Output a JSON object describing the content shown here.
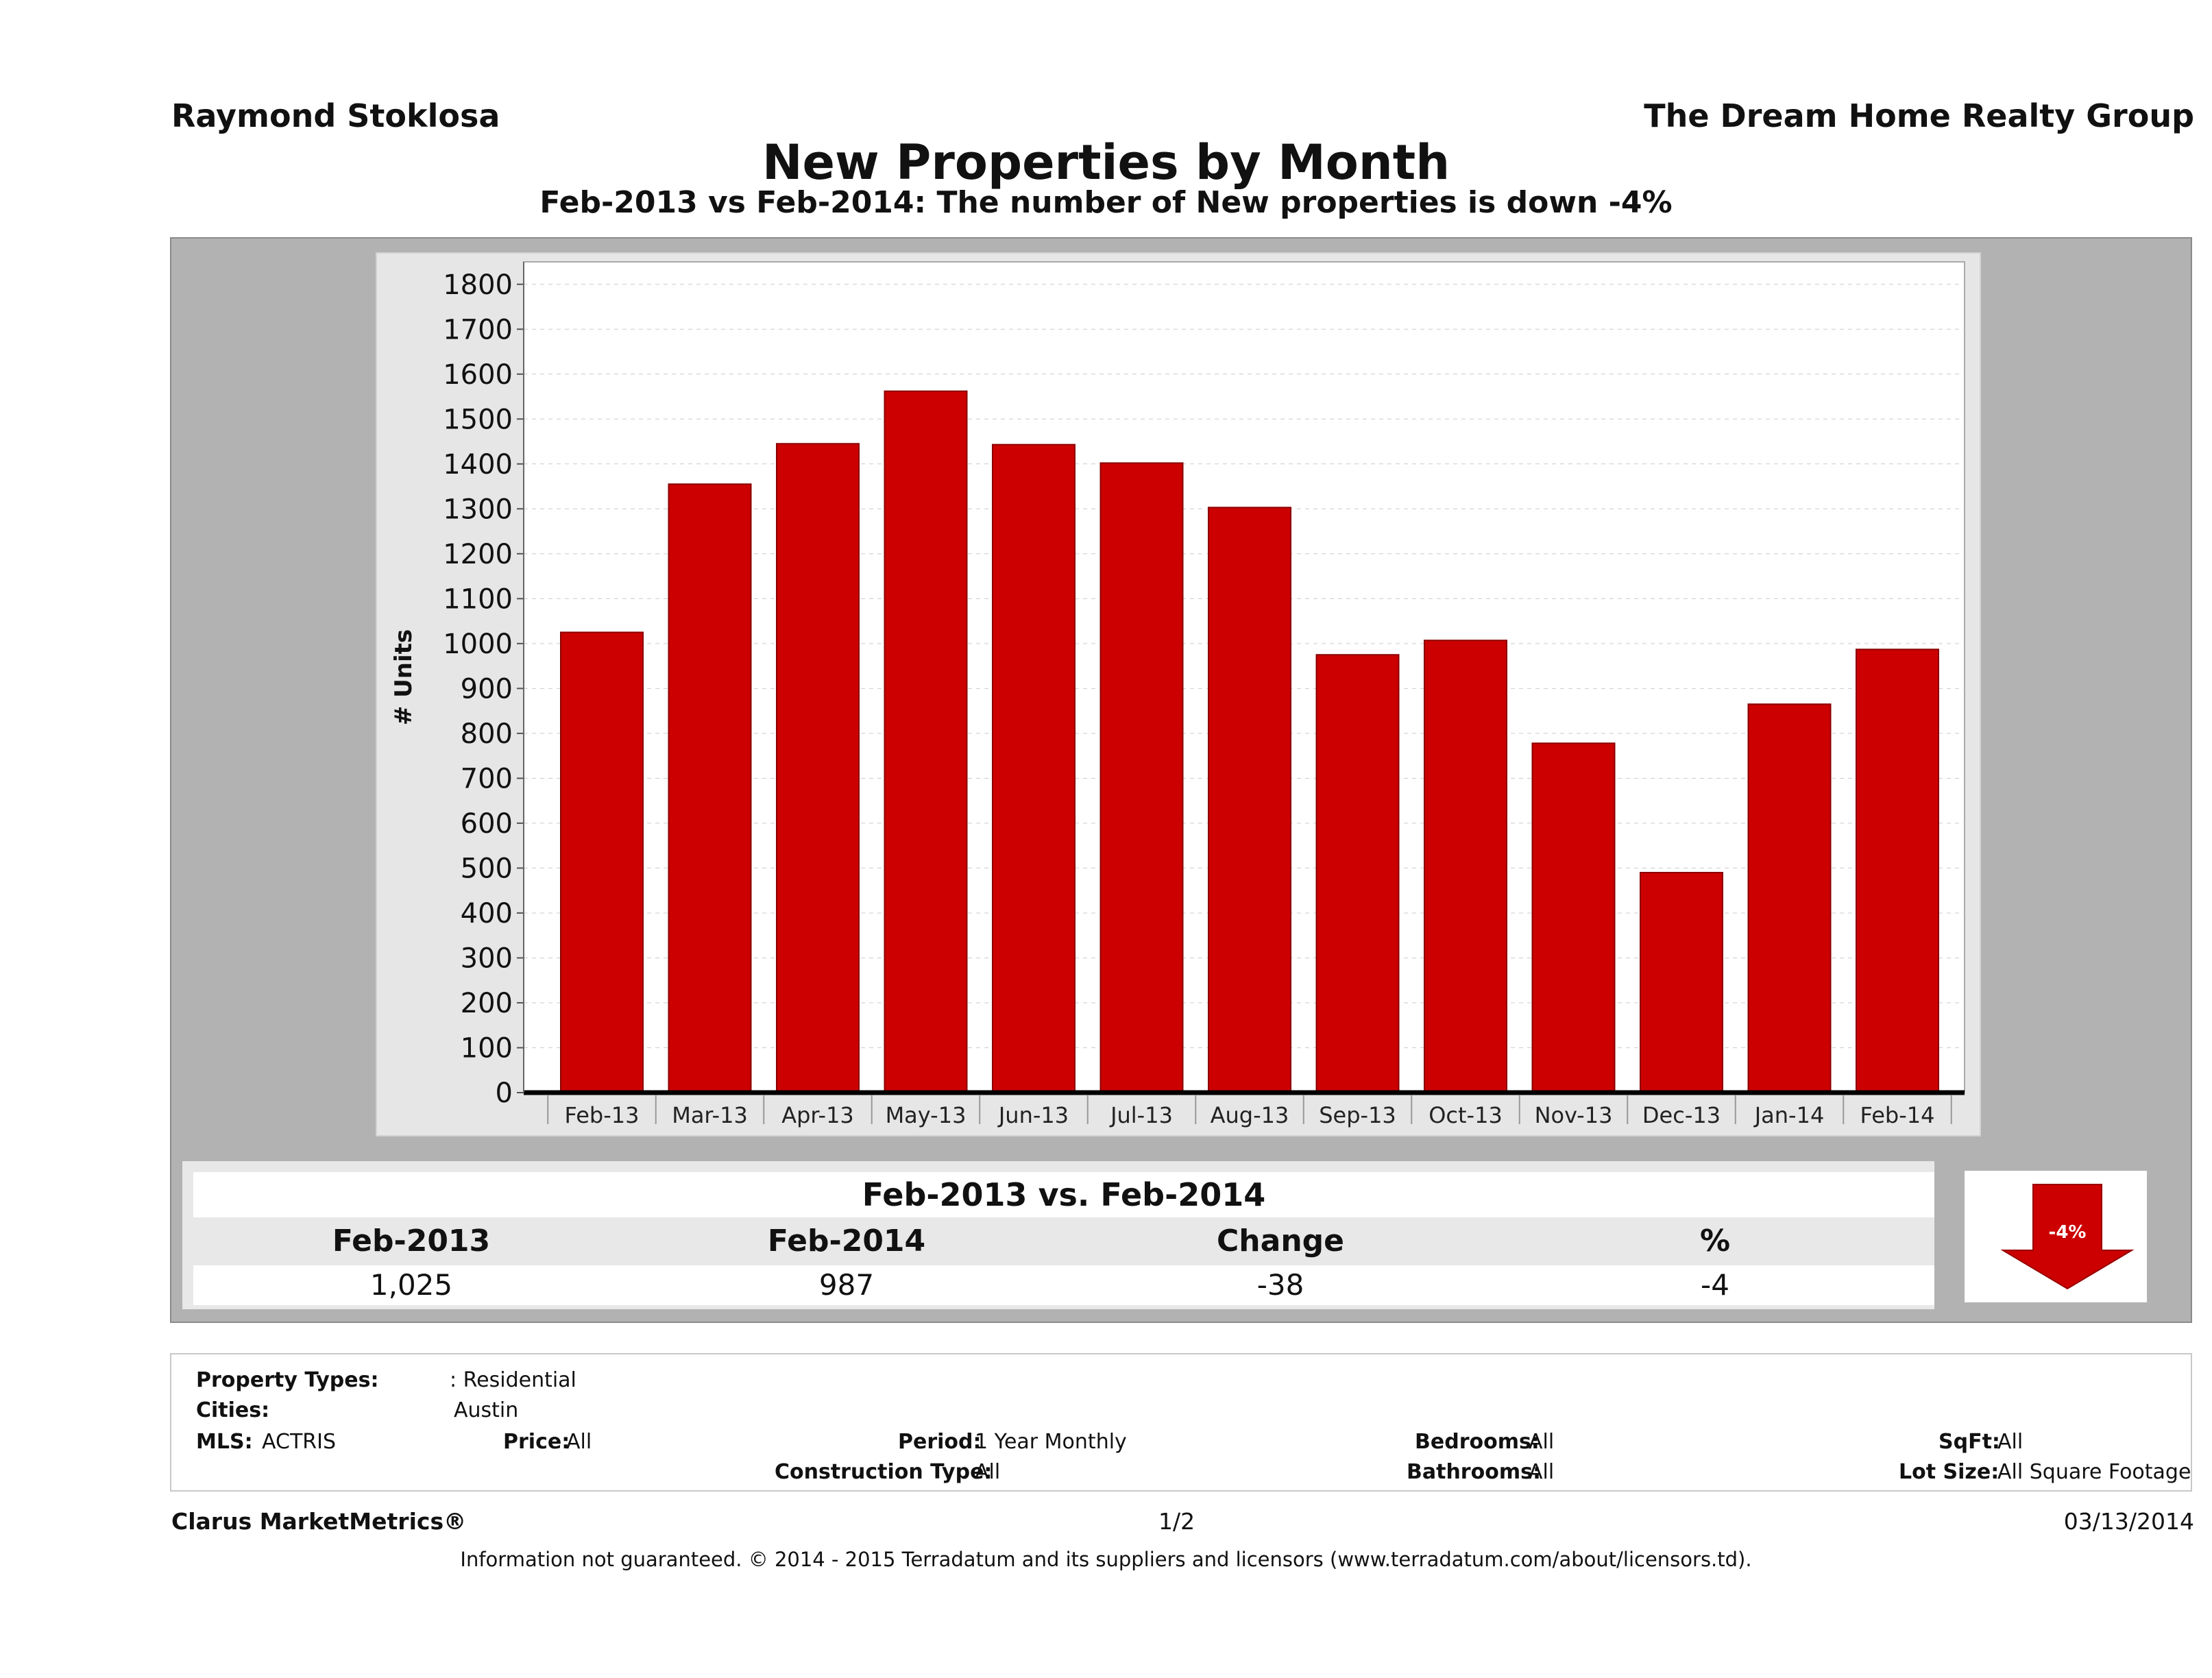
{
  "header": {
    "agent": "Raymond Stoklosa",
    "company": "The Dream Home Realty Group",
    "title": "New Properties by Month",
    "subtitle": "Feb-2013 vs Feb-2014: The number of New  properties is down -4%"
  },
  "chart_data": {
    "type": "bar",
    "categories": [
      "Feb-13",
      "Mar-13",
      "Apr-13",
      "May-13",
      "Jun-13",
      "Jul-13",
      "Aug-13",
      "Sep-13",
      "Oct-13",
      "Nov-13",
      "Dec-13",
      "Jan-14",
      "Feb-14"
    ],
    "values": [
      1025,
      1355,
      1445,
      1562,
      1443,
      1402,
      1303,
      975,
      1007,
      778,
      490,
      865,
      987
    ],
    "title": "New Properties by Month",
    "xlabel": "",
    "ylabel": "# Units",
    "ylim": [
      0,
      1850
    ],
    "yticks": [
      0,
      100,
      200,
      300,
      400,
      500,
      600,
      700,
      800,
      900,
      1000,
      1100,
      1200,
      1300,
      1400,
      1500,
      1600,
      1700,
      1800
    ],
    "bar_color": "#cc0000",
    "grid": true
  },
  "comparison": {
    "title": "Feb-2013 vs. Feb-2014",
    "headers": [
      "Feb-2013",
      "Feb-2014",
      "Change",
      "%"
    ],
    "values": [
      "1,025",
      "987",
      "-38",
      "-4"
    ],
    "badge": "-4%",
    "badge_color": "#cc0000"
  },
  "filters": {
    "property_types_label": "Property Types:",
    "property_types_value": ": Residential",
    "cities_label": "Cities:",
    "cities_value": "Austin",
    "mls_label": "MLS:",
    "mls_value": "ACTRIS",
    "price_label": "Price:",
    "price_value": "All",
    "period_label": "Period:",
    "period_value": "1 Year Monthly",
    "construction_label": "Construction Type:",
    "construction_value": "All",
    "bedrooms_label": "Bedrooms:",
    "bedrooms_value": "All",
    "bathrooms_label": "Bathrooms:",
    "bathrooms_value": "All",
    "sqft_label": "SqFt:",
    "sqft_value": "All",
    "lotsize_label": "Lot Size:",
    "lotsize_value": "All Square Footage"
  },
  "footer": {
    "brand": "Clarus MarketMetrics®",
    "page": "1/2",
    "date": "03/13/2014",
    "disclaimer": "Information not guaranteed. © 2014 - 2015 Terradatum and its suppliers and licensors (www.terradatum.com/about/licensors.td)."
  }
}
